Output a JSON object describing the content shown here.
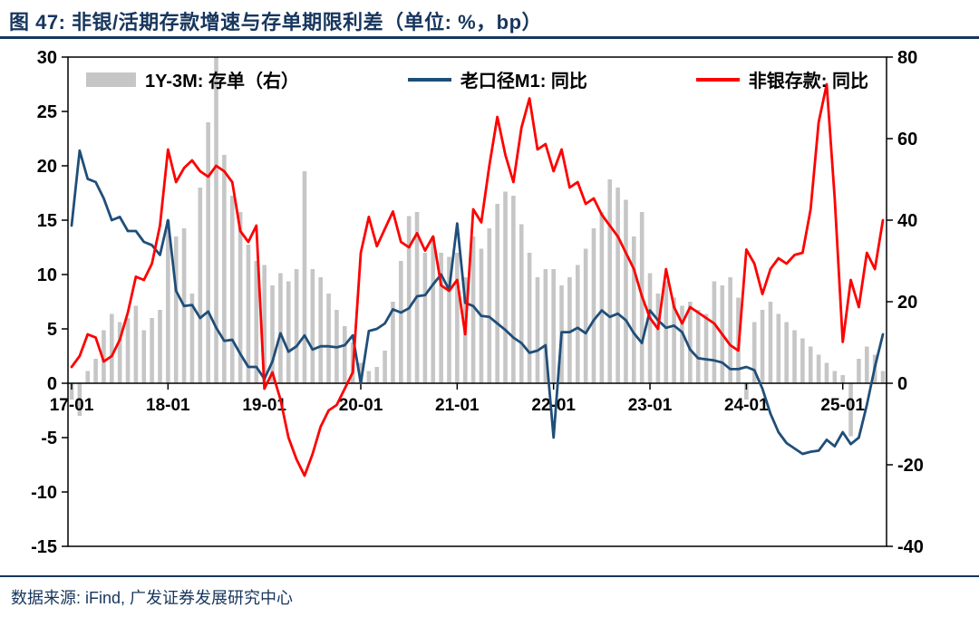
{
  "header": {
    "title": "图 47: 非银/活期存款增速与存单期限利差（单位: %，bp）"
  },
  "footer": {
    "source": "数据来源: iFind, 广发证券发展研究中心"
  },
  "colors": {
    "accent": "#17365d",
    "bar": "#c6c6c6",
    "m1_line": "#1f4e79",
    "nonbank_line": "#ff0000",
    "axis": "#000000"
  },
  "chart_data": {
    "type": "combo",
    "title": "非银/活期存款增速与存单期限利差",
    "unit": "%，bp",
    "x": [
      "17-01",
      "17-02",
      "17-03",
      "17-04",
      "17-05",
      "17-06",
      "17-07",
      "17-08",
      "17-09",
      "17-10",
      "17-11",
      "17-12",
      "18-01",
      "18-02",
      "18-03",
      "18-04",
      "18-05",
      "18-06",
      "18-07",
      "18-08",
      "18-09",
      "18-10",
      "18-11",
      "18-12",
      "19-01",
      "19-02",
      "19-03",
      "19-04",
      "19-05",
      "19-06",
      "19-07",
      "19-08",
      "19-09",
      "19-10",
      "19-11",
      "19-12",
      "20-01",
      "20-02",
      "20-03",
      "20-04",
      "20-05",
      "20-06",
      "20-07",
      "20-08",
      "20-09",
      "20-10",
      "20-11",
      "20-12",
      "21-01",
      "21-02",
      "21-03",
      "21-04",
      "21-05",
      "21-06",
      "21-07",
      "21-08",
      "21-09",
      "21-10",
      "21-11",
      "21-12",
      "22-01",
      "22-02",
      "22-03",
      "22-04",
      "22-05",
      "22-06",
      "22-07",
      "22-08",
      "22-09",
      "22-10",
      "22-11",
      "22-12",
      "23-01",
      "23-02",
      "23-03",
      "23-04",
      "23-05",
      "23-06",
      "23-07",
      "23-08",
      "23-09",
      "23-10",
      "23-11",
      "23-12",
      "24-01",
      "24-02",
      "24-03",
      "24-04",
      "24-05",
      "24-06",
      "24-07",
      "24-08",
      "24-09",
      "24-10",
      "24-11",
      "24-12",
      "25-01",
      "25-02",
      "25-03",
      "25-04",
      "25-05",
      "25-06"
    ],
    "series": [
      {
        "name": "1Y-3M: 存单（右）",
        "type": "bar",
        "axis": "right",
        "color": "#c6c6c6",
        "values": [
          -4,
          -8,
          3,
          6,
          13,
          17,
          15,
          16,
          19,
          13,
          16,
          18,
          40,
          36,
          38,
          22,
          48,
          64,
          80,
          56,
          46,
          42,
          34,
          30,
          29,
          24,
          27,
          25,
          28,
          52,
          28,
          26,
          22,
          18,
          14,
          10,
          5,
          3,
          4,
          8,
          20,
          30,
          41,
          42,
          32,
          36,
          32,
          31,
          32,
          26,
          36,
          33,
          38,
          44,
          47,
          46,
          39,
          32,
          26,
          28,
          28,
          24,
          26,
          29,
          33,
          38,
          42,
          50,
          48,
          45,
          36,
          42,
          27,
          22,
          25,
          21,
          19,
          20,
          18,
          17,
          25,
          24,
          26,
          21,
          -4,
          15,
          18,
          20,
          17,
          15,
          13,
          11,
          9,
          7,
          5,
          3,
          2,
          -13,
          6,
          9,
          7,
          3
        ]
      },
      {
        "name": "老口径M1: 同比",
        "type": "line",
        "axis": "left",
        "color": "#1f4e79",
        "values": [
          14.5,
          21.4,
          18.8,
          18.5,
          17.0,
          15.0,
          15.3,
          14.0,
          14.0,
          13.0,
          12.7,
          11.8,
          15.0,
          8.5,
          7.1,
          7.2,
          6.0,
          6.6,
          5.1,
          3.9,
          4.0,
          2.7,
          1.5,
          1.5,
          0.4,
          2.0,
          4.6,
          2.9,
          3.4,
          4.4,
          3.1,
          3.4,
          3.4,
          3.3,
          3.5,
          4.4,
          0.0,
          4.8,
          5.0,
          5.5,
          6.8,
          6.5,
          6.9,
          8.0,
          8.1,
          9.1,
          10.0,
          8.6,
          14.7,
          7.4,
          7.1,
          6.2,
          6.1,
          5.5,
          4.9,
          4.2,
          3.7,
          2.8,
          3.0,
          3.5,
          -5.0,
          4.7,
          4.7,
          5.1,
          4.6,
          5.8,
          6.7,
          6.1,
          6.4,
          5.8,
          4.6,
          3.7,
          6.7,
          5.8,
          5.1,
          5.3,
          4.7,
          3.1,
          2.3,
          2.2,
          2.1,
          1.9,
          1.3,
          1.3,
          1.5,
          1.2,
          -0.5,
          -2.8,
          -4.5,
          -5.5,
          -6.0,
          -6.5,
          -6.3,
          -6.2,
          -5.2,
          -5.8,
          -4.5,
          -5.6,
          -5.0,
          -2.0,
          1.5,
          4.5
        ]
      },
      {
        "name": "非银存款: 同比",
        "type": "line",
        "axis": "left",
        "color": "#ff0000",
        "values": [
          1.5,
          2.5,
          4.5,
          4.2,
          2.0,
          2.5,
          4.0,
          6.5,
          9.8,
          9.5,
          11.0,
          14.5,
          21.5,
          18.5,
          19.8,
          20.5,
          19.5,
          19.0,
          20.0,
          19.5,
          18.5,
          14.0,
          13.0,
          14.5,
          -0.5,
          1.0,
          -1.5,
          -5.0,
          -7.0,
          -8.5,
          -6.5,
          -4.0,
          -2.5,
          -2.0,
          -0.5,
          1.0,
          12.0,
          15.3,
          12.6,
          14.2,
          15.8,
          13.0,
          12.5,
          13.8,
          12.2,
          13.5,
          9.0,
          8.5,
          9.5,
          4.5,
          16.0,
          14.8,
          20.0,
          24.5,
          21.0,
          18.5,
          23.5,
          26.2,
          21.5,
          22.0,
          19.5,
          21.5,
          18.0,
          18.5,
          16.5,
          17.0,
          15.5,
          14.5,
          13.5,
          12.0,
          10.5,
          8.0,
          6.0,
          5.0,
          10.5,
          7.0,
          5.5,
          7.0,
          6.5,
          6.0,
          5.5,
          4.5,
          3.5,
          3.0,
          12.3,
          11.0,
          8.2,
          10.5,
          11.5,
          11.0,
          11.8,
          12.0,
          16.0,
          24.0,
          27.5,
          17.0,
          3.8,
          9.5,
          7.0,
          12.0,
          10.5,
          15.0
        ]
      }
    ],
    "axes": {
      "left": {
        "min": -15,
        "max": 30,
        "step": 5
      },
      "right": {
        "min": -40,
        "max": 80,
        "step": 20
      },
      "x_tick_labels": [
        "17-01",
        "18-01",
        "19-01",
        "20-01",
        "21-01",
        "22-01",
        "23-01",
        "24-01",
        "25-01"
      ],
      "x_tick_indices": [
        0,
        12,
        24,
        36,
        48,
        60,
        72,
        84,
        96
      ],
      "grid": false,
      "legend_position": "top-inside"
    }
  }
}
